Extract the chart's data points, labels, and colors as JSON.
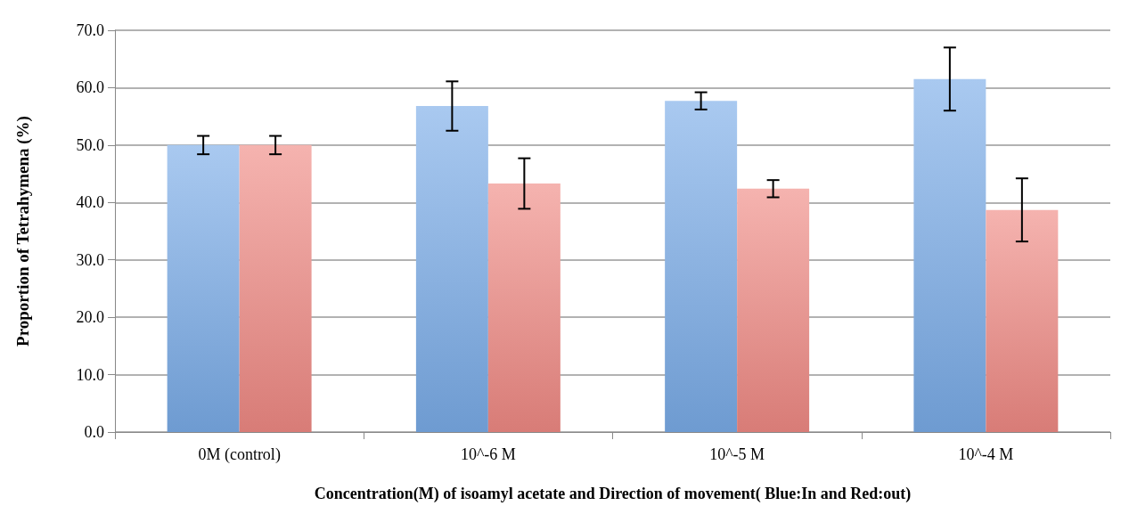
{
  "chart_data": {
    "type": "bar",
    "xlabel": "Concentration(M) of isoamyl acetate and Direction of movement( Blue:In and Red:out)",
    "ylabel": "Proportion of Tetrahymena (%)",
    "categories": [
      "0M (control)",
      "10^-6 M",
      "10^-5 M",
      "10^-4 M"
    ],
    "series": [
      {
        "color": "#7aace8",
        "values": [
          50.0,
          56.8,
          57.7,
          61.5
        ],
        "errors": [
          1.6,
          4.3,
          1.5,
          5.5
        ]
      },
      {
        "color": "#f08a84",
        "values": [
          50.0,
          43.3,
          42.4,
          38.7
        ],
        "errors": [
          1.6,
          4.4,
          1.5,
          5.5
        ]
      }
    ],
    "ylim": [
      0,
      70
    ],
    "yticks": [
      {
        "value": 0,
        "label": "0.0"
      },
      {
        "value": 10,
        "label": "10.0"
      },
      {
        "value": 20,
        "label": "20.0"
      },
      {
        "value": 30,
        "label": "30.0"
      },
      {
        "value": 40,
        "label": "40.0"
      },
      {
        "value": 50,
        "label": "50.0"
      },
      {
        "value": 60,
        "label": "60.0"
      },
      {
        "value": 70,
        "label": "70.0"
      }
    ],
    "grid": "y"
  }
}
